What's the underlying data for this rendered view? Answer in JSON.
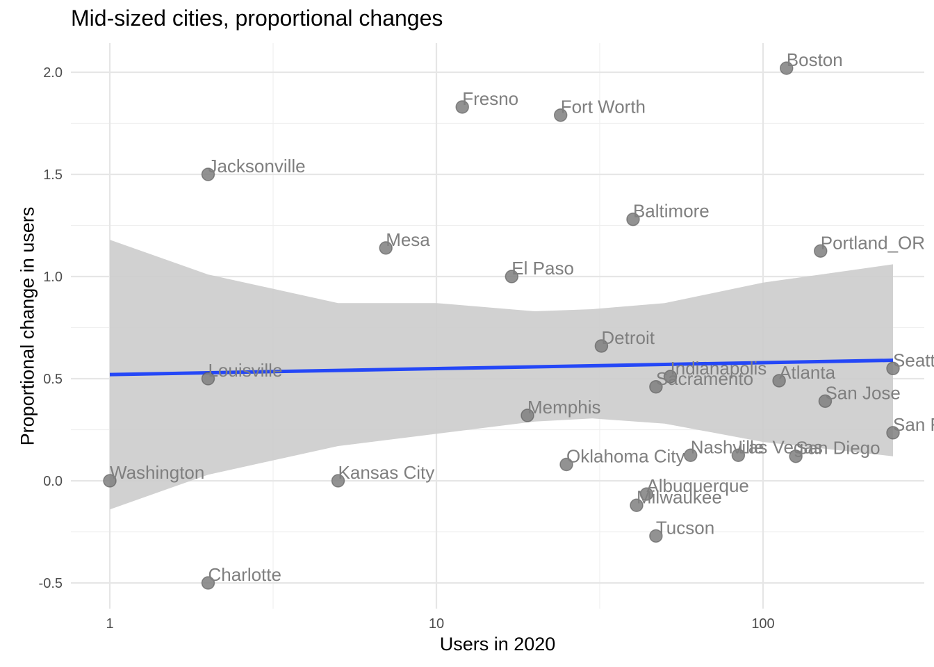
{
  "chart_data": {
    "type": "scatter",
    "title": "Mid-sized cities, proportional changes",
    "xlabel": "Users in 2020",
    "ylabel": "Proportional change in users",
    "x_scale": "log10",
    "xlim": [
      0.8,
      260
    ],
    "ylim": [
      -0.6,
      2.15
    ],
    "x_ticks": [
      1,
      10,
      100
    ],
    "x_tick_labels": [
      "1",
      "10",
      "100"
    ],
    "y_ticks": [
      -0.5,
      0.0,
      0.5,
      1.0,
      1.5,
      2.0
    ],
    "y_tick_labels": [
      "-0.5",
      "0.0",
      "0.5",
      "1.0",
      "1.5",
      "2.0"
    ],
    "grid": true,
    "points": [
      {
        "label": "Boston",
        "x": 118,
        "y": 2.02
      },
      {
        "label": "Fresno",
        "x": 12,
        "y": 1.83
      },
      {
        "label": "Fort Worth",
        "x": 24,
        "y": 1.79
      },
      {
        "label": "Jacksonville",
        "x": 2,
        "y": 1.5
      },
      {
        "label": "Baltimore",
        "x": 40,
        "y": 1.28
      },
      {
        "label": "Mesa",
        "x": 7,
        "y": 1.14
      },
      {
        "label": "Portland_OR",
        "x": 150,
        "y": 1.125
      },
      {
        "label": "El Paso",
        "x": 17,
        "y": 1.0
      },
      {
        "label": "Detroit",
        "x": 32,
        "y": 0.66
      },
      {
        "label": "Seattle",
        "x": 250,
        "y": 0.55
      },
      {
        "label": "Indianapolis",
        "x": 52,
        "y": 0.51
      },
      {
        "label": "Louisville",
        "x": 2,
        "y": 0.5
      },
      {
        "label": "Atlanta",
        "x": 112,
        "y": 0.49
      },
      {
        "label": "Sacramento",
        "x": 47,
        "y": 0.46
      },
      {
        "label": "San Jose",
        "x": 155,
        "y": 0.39
      },
      {
        "label": "Memphis",
        "x": 19,
        "y": 0.32
      },
      {
        "label": "San Francisco",
        "x": 250,
        "y": 0.235
      },
      {
        "label": "Nashville",
        "x": 60,
        "y": 0.125
      },
      {
        "label": "Las Vegas",
        "x": 84,
        "y": 0.125
      },
      {
        "label": "San Diego",
        "x": 126,
        "y": 0.12
      },
      {
        "label": "Oklahoma City",
        "x": 25,
        "y": 0.08
      },
      {
        "label": "Washington",
        "x": 1,
        "y": 0.0
      },
      {
        "label": "Kansas City",
        "x": 5,
        "y": 0.0
      },
      {
        "label": "Albuquerque",
        "x": 44,
        "y": -0.065
      },
      {
        "label": "Milwaukee",
        "x": 41,
        "y": -0.12
      },
      {
        "label": "Tucson",
        "x": 47,
        "y": -0.27
      },
      {
        "label": "Charlotte",
        "x": 2,
        "y": -0.5
      }
    ],
    "trend_line": {
      "x": [
        1,
        250
      ],
      "y": [
        0.52,
        0.59
      ],
      "color": "#2447f7"
    },
    "confidence_band": {
      "x": [
        1,
        2,
        5,
        10,
        20,
        30,
        50,
        100,
        250
      ],
      "lower": [
        -0.14,
        0.03,
        0.17,
        0.23,
        0.29,
        0.305,
        0.28,
        0.19,
        0.12
      ],
      "upper": [
        1.18,
        1.01,
        0.87,
        0.87,
        0.83,
        0.84,
        0.87,
        0.97,
        1.06
      ],
      "color": "#cccccc"
    },
    "point_color": "#7f7f7f",
    "label_color": "#7f7f7f"
  }
}
